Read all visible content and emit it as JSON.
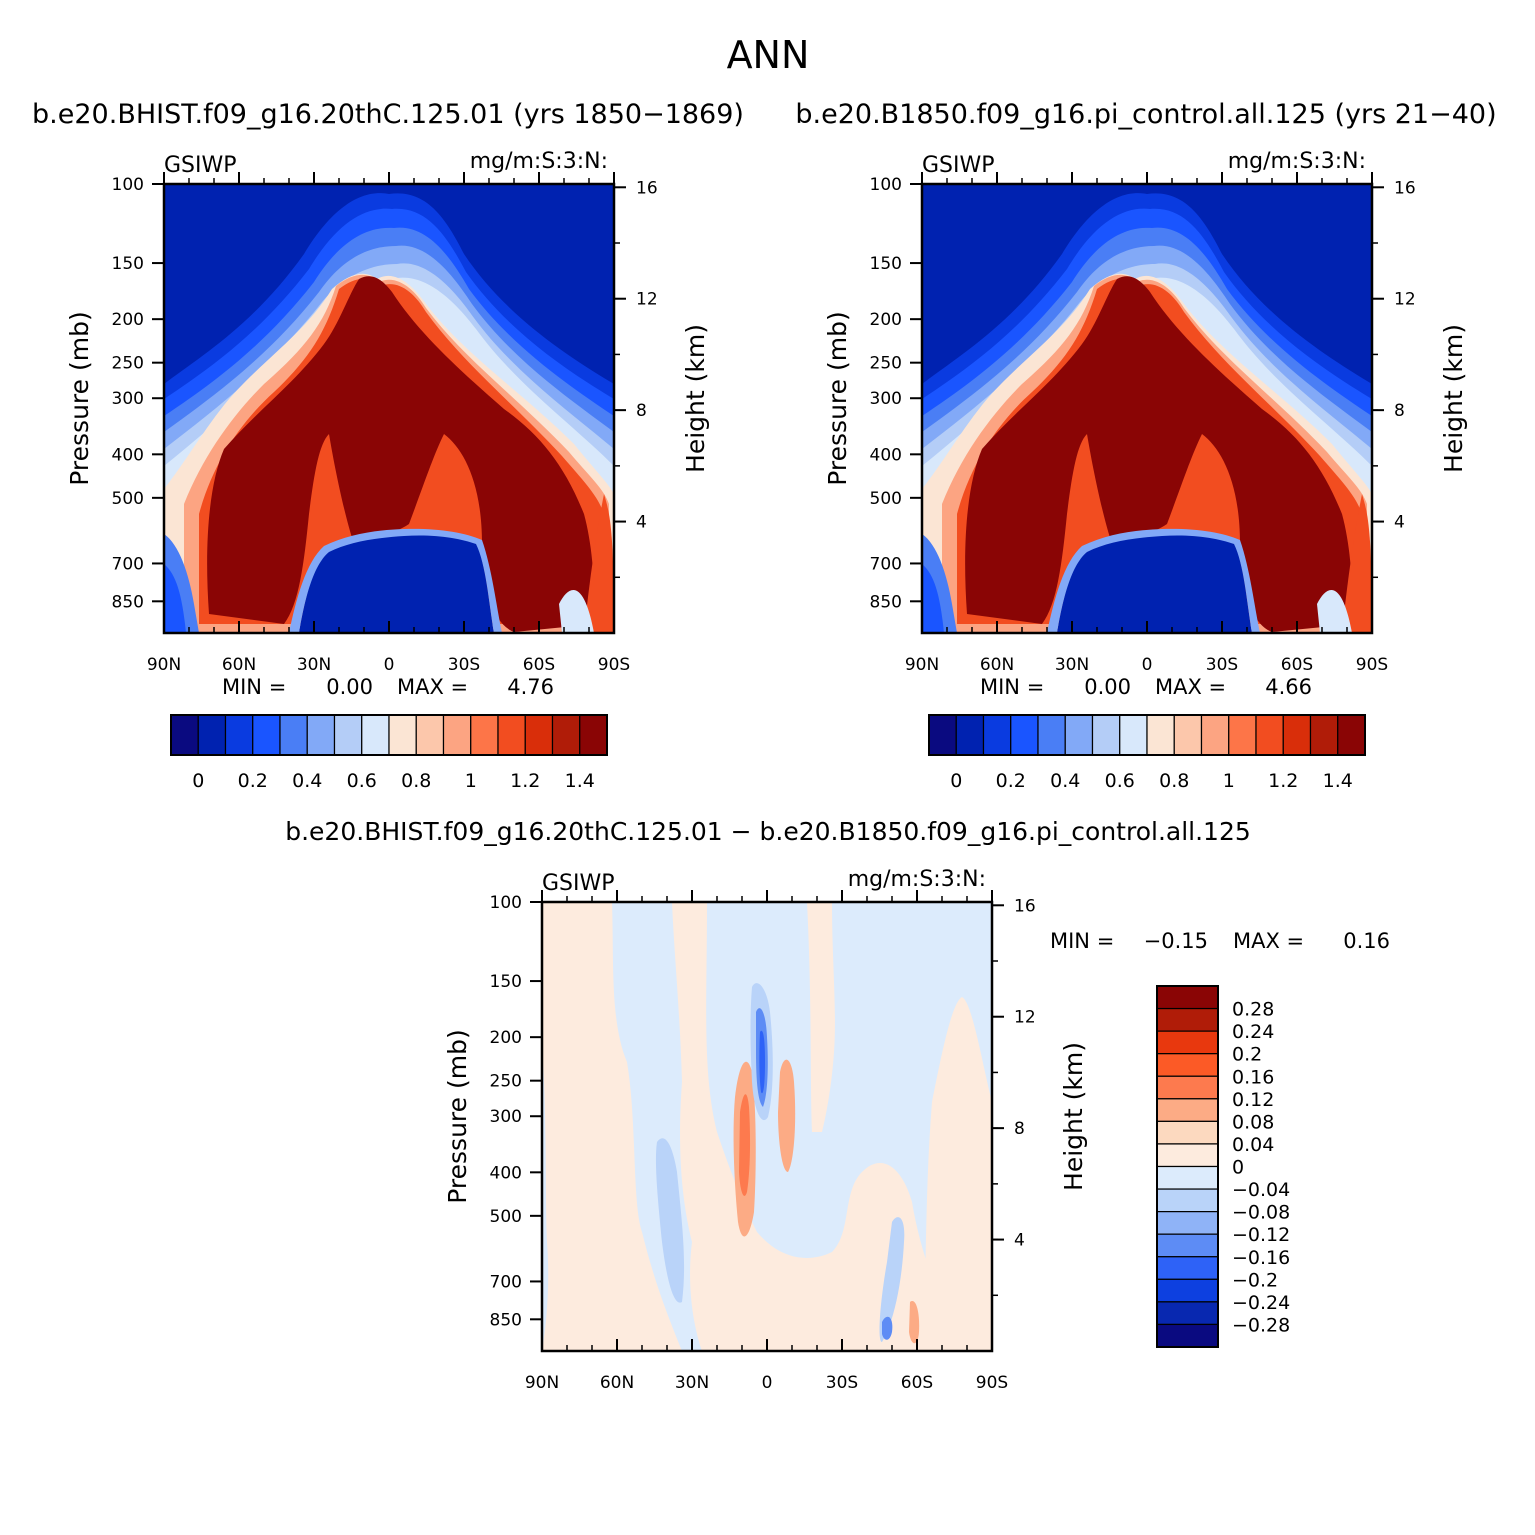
{
  "figure": {
    "title": "ANN",
    "panel1_title": "b.e20.BHIST.f09_g16.20thC.125.01 (yrs 1850−1869)",
    "panel2_title": "b.e20.B1850.f09_g16.pi_control.all.125 (yrs 21−40)",
    "diff_title": "b.e20.BHIST.f09_g16.20thC.125.01 − b.e20.B1850.f09_g16.pi_control.all.125"
  },
  "chart_data": [
    {
      "type": "heatmap",
      "variable": "GSIWP",
      "units": "mg/m:S:3:N:",
      "ylabel": "Pressure (mb)",
      "y2label": "Height (km)",
      "x_ticks": [
        "90N",
        "60N",
        "30N",
        "0",
        "30S",
        "60S",
        "90S"
      ],
      "x_values": [
        90,
        60,
        30,
        0,
        -30,
        -60,
        -90
      ],
      "y_ticks": [
        100,
        150,
        200,
        250,
        300,
        400,
        500,
        700,
        850
      ],
      "y2_ticks": [
        16,
        12,
        8,
        4
      ],
      "ylim": [
        100,
        1000
      ],
      "log_pressure": true,
      "min_label": "MIN =",
      "min_value": "0.00",
      "max_label": "MAX =",
      "max_value": "4.76",
      "colorbar": {
        "labels": [
          "0",
          "0.2",
          "0.4",
          "0.6",
          "0.8",
          "1",
          "1.2",
          "1.4"
        ],
        "levels": [
          0,
          0.1,
          0.2,
          0.3,
          0.4,
          0.5,
          0.6,
          0.7,
          0.8,
          0.9,
          1.0,
          1.1,
          1.2,
          1.3,
          1.4
        ],
        "colors": [
          "#0a0a80",
          "#0022b0",
          "#0a3be0",
          "#1a55ff",
          "#4a7ef5",
          "#82a9f7",
          "#b4cdf7",
          "#d8e8fb",
          "#fbe5d4",
          "#fcc7ab",
          "#fca482",
          "#fd7548",
          "#f24d20",
          "#d92e0a",
          "#b01c08",
          "#8a0505"
        ]
      }
    },
    {
      "type": "heatmap",
      "variable": "GSIWP",
      "units": "mg/m:S:3:N:",
      "ylabel": "Pressure (mb)",
      "y2label": "Height (km)",
      "x_ticks": [
        "90N",
        "60N",
        "30N",
        "0",
        "30S",
        "60S",
        "90S"
      ],
      "x_values": [
        90,
        60,
        30,
        0,
        -30,
        -60,
        -90
      ],
      "y_ticks": [
        100,
        150,
        200,
        250,
        300,
        400,
        500,
        700,
        850
      ],
      "y2_ticks": [
        16,
        12,
        8,
        4
      ],
      "ylim": [
        100,
        1000
      ],
      "log_pressure": true,
      "min_label": "MIN =",
      "min_value": "0.00",
      "max_label": "MAX =",
      "max_value": "4.66",
      "colorbar": {
        "labels": [
          "0",
          "0.2",
          "0.4",
          "0.6",
          "0.8",
          "1",
          "1.2",
          "1.4"
        ],
        "levels": [
          0,
          0.1,
          0.2,
          0.3,
          0.4,
          0.5,
          0.6,
          0.7,
          0.8,
          0.9,
          1.0,
          1.1,
          1.2,
          1.3,
          1.4
        ],
        "colors": [
          "#0a0a80",
          "#0022b0",
          "#0a3be0",
          "#1a55ff",
          "#4a7ef5",
          "#82a9f7",
          "#b4cdf7",
          "#d8e8fb",
          "#fbe5d4",
          "#fcc7ab",
          "#fca482",
          "#fd7548",
          "#f24d20",
          "#d92e0a",
          "#b01c08",
          "#8a0505"
        ]
      }
    },
    {
      "type": "heatmap",
      "variable": "GSIWP",
      "units": "mg/m:S:3:N:",
      "ylabel": "Pressure (mb)",
      "y2label": "Height (km)",
      "x_ticks": [
        "90N",
        "60N",
        "30N",
        "0",
        "30S",
        "60S",
        "90S"
      ],
      "x_values": [
        90,
        60,
        30,
        0,
        -30,
        -60,
        -90
      ],
      "y_ticks": [
        100,
        150,
        200,
        250,
        300,
        400,
        500,
        700,
        850
      ],
      "y2_ticks": [
        16,
        12,
        8,
        4
      ],
      "ylim": [
        100,
        1000
      ],
      "log_pressure": true,
      "min_label": "MIN =",
      "min_value": "−0.15",
      "max_label": "MAX =",
      "max_value": "0.16",
      "colorbar": {
        "labels": [
          "0.28",
          "0.24",
          "0.2",
          "0.16",
          "0.12",
          "0.08",
          "0.04",
          "0",
          "−0.04",
          "−0.08",
          "−0.12",
          "−0.16",
          "−0.2",
          "−0.24",
          "−0.28"
        ],
        "colors": [
          "#8a0505",
          "#b01c08",
          "#e8380e",
          "#fc5a26",
          "#fd7a4e",
          "#fcab85",
          "#fcd9bf",
          "#fdebde",
          "#dcebfc",
          "#b9d3f9",
          "#8fb3f7",
          "#5d8cf5",
          "#2e62f7",
          "#0d40e0",
          "#0828b0",
          "#0a0a80"
        ]
      }
    }
  ]
}
